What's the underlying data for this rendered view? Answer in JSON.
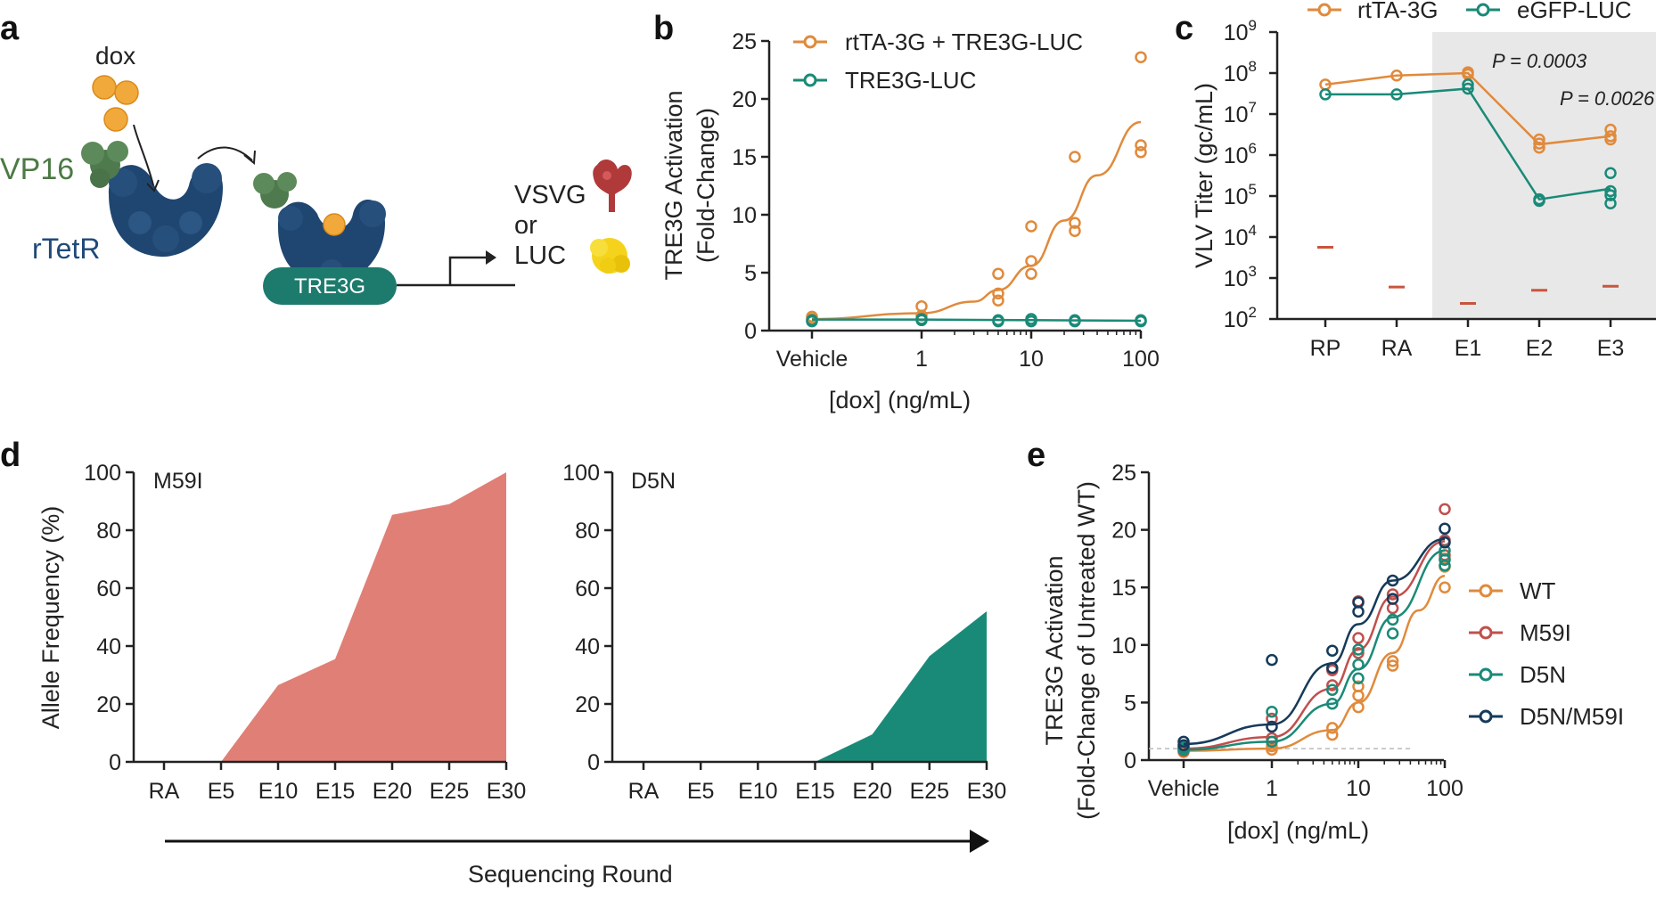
{
  "panel_labels": {
    "a": "a",
    "b": "b",
    "c": "c",
    "d": "d",
    "e": "e"
  },
  "schematic": {
    "dox": "dox",
    "vp16": "VP16",
    "rtetr": "rTetR",
    "tre3g": "TRE3G",
    "vsvg": "VSVG",
    "or": "or",
    "luc": "LUC"
  },
  "colors": {
    "orange": "#e08a3c",
    "teal": "#1a8a78",
    "navy": "#163a5a",
    "red": "#c0504d",
    "salmon": "#e07f76",
    "mark": "#c8553d",
    "shade": "#e8e8e8"
  },
  "chart_data": [
    {
      "id": "b",
      "type": "scatter",
      "xlabel": "[dox] (ng/mL)",
      "ylabel_line1": "TRE3G Activation",
      "ylabel_line2": "(Fold-Change)",
      "x_tick_labels": [
        "Vehicle",
        "1",
        "10",
        "100"
      ],
      "y_tick_labels": [
        "0",
        "5",
        "10",
        "15",
        "20",
        "25"
      ],
      "ylim": [
        0,
        25
      ],
      "series": [
        {
          "name": "rtTA-3G + TRE3G-LUC",
          "color": "orange",
          "points": [
            [
              0,
              1.2
            ],
            [
              0,
              1.0
            ],
            [
              1,
              2.1
            ],
            [
              1,
              1.3
            ],
            [
              5,
              4.9
            ],
            [
              5,
              3.2
            ],
            [
              5,
              2.6
            ],
            [
              10,
              9.0
            ],
            [
              10,
              6.0
            ],
            [
              10,
              4.9
            ],
            [
              25,
              15.0
            ],
            [
              25,
              9.3
            ],
            [
              25,
              8.6
            ],
            [
              100,
              23.6
            ],
            [
              100,
              16.0
            ],
            [
              100,
              15.4
            ]
          ],
          "curve": [
            [
              0,
              1.0
            ],
            [
              1,
              1.5
            ],
            [
              3,
              2.5
            ],
            [
              5,
              3.5
            ],
            [
              10,
              5.6
            ],
            [
              20,
              9.5
            ],
            [
              40,
              13.4
            ],
            [
              100,
              18.0
            ]
          ]
        },
        {
          "name": "TRE3G-LUC",
          "color": "teal",
          "points": [
            [
              0,
              0.9
            ],
            [
              0,
              0.8
            ],
            [
              1,
              1.0
            ],
            [
              1,
              0.9
            ],
            [
              5,
              0.9
            ],
            [
              5,
              0.8
            ],
            [
              10,
              1.0
            ],
            [
              10,
              0.8
            ],
            [
              25,
              0.9
            ],
            [
              25,
              0.8
            ],
            [
              100,
              0.9
            ],
            [
              100,
              0.8
            ]
          ],
          "curve": [
            [
              0,
              0.95
            ],
            [
              1,
              0.95
            ],
            [
              10,
              0.9
            ],
            [
              100,
              0.85
            ]
          ]
        }
      ]
    },
    {
      "id": "c",
      "type": "line",
      "ylabel": "VLV Titer (gc/mL)",
      "categories": [
        "RP",
        "RA",
        "E1",
        "E2",
        "E3"
      ],
      "y_tick_exponents": [
        "2",
        "3",
        "4",
        "5",
        "6",
        "7",
        "8",
        "9"
      ],
      "y_tick_base": "10",
      "ylim_log10": [
        2,
        9
      ],
      "series": [
        {
          "name": "rtTA-3G",
          "color": "orange",
          "means": [
            7.72,
            7.94,
            8.0,
            6.26,
            6.46
          ],
          "points": [
            [
              0,
              7.72
            ],
            [
              1,
              7.94
            ],
            [
              2,
              8.02
            ],
            [
              2,
              7.97
            ],
            [
              3,
              6.38
            ],
            [
              3,
              6.18
            ],
            [
              3,
              6.28
            ],
            [
              4,
              6.62
            ],
            [
              4,
              6.38
            ],
            [
              4,
              6.46
            ]
          ]
        },
        {
          "name": "eGFP-LUC",
          "color": "teal",
          "means": [
            7.48,
            7.48,
            7.62,
            4.92,
            5.18
          ],
          "points": [
            [
              0,
              7.48
            ],
            [
              1,
              7.48
            ],
            [
              2,
              7.72
            ],
            [
              2,
              7.62
            ],
            [
              3,
              4.92
            ],
            [
              3,
              4.88
            ],
            [
              4,
              5.56
            ],
            [
              4,
              5.02
            ],
            [
              4,
              4.82
            ],
            [
              4,
              5.12
            ]
          ]
        }
      ],
      "detection_limits": [
        3.75,
        2.78,
        2.38,
        2.7,
        2.8
      ],
      "shaded_categories": [
        "E1",
        "E2",
        "E3"
      ],
      "annotations": [
        "P = 0.0003",
        "P = 0.0026"
      ]
    },
    {
      "id": "d1",
      "type": "area",
      "title": "M59I",
      "ylabel": "Allele Frequency (%)",
      "categories": [
        "RA",
        "E5",
        "E10",
        "E15",
        "E20",
        "E25",
        "E30"
      ],
      "values": [
        0,
        0,
        26.5,
        35.5,
        85.3,
        89,
        100
      ],
      "y_tick_labels": [
        "0",
        "20",
        "40",
        "60",
        "80",
        "100"
      ],
      "ylim": [
        0,
        100
      ],
      "color": "salmon"
    },
    {
      "id": "d2",
      "type": "area",
      "title": "D5N",
      "categories": [
        "RA",
        "E5",
        "E10",
        "E15",
        "E20",
        "E25",
        "E30"
      ],
      "values": [
        0,
        0,
        0,
        0,
        9.5,
        36.5,
        52
      ],
      "y_tick_labels": [
        "0",
        "20",
        "40",
        "60",
        "80",
        "100"
      ],
      "ylim": [
        0,
        100
      ],
      "color": "teal",
      "xlabel": "Sequencing Round"
    },
    {
      "id": "e",
      "type": "scatter",
      "xlabel": "[dox] (ng/mL)",
      "ylabel_line1": "TRE3G Activation",
      "ylabel_line2": "(Fold-Change of Untreated WT)",
      "x_tick_labels": [
        "Vehicle",
        "1",
        "10",
        "100"
      ],
      "y_tick_labels": [
        "0",
        "5",
        "10",
        "15",
        "20",
        "25"
      ],
      "ylim": [
        0,
        25
      ],
      "baseline": 1,
      "series": [
        {
          "name": "WT",
          "color": "orange",
          "points": [
            [
              0,
              0.7
            ],
            [
              0,
              1.0
            ],
            [
              1,
              0.9
            ],
            [
              1,
              1.2
            ],
            [
              5,
              2.2
            ],
            [
              5,
              2.8
            ],
            [
              10,
              4.6
            ],
            [
              10,
              5.6
            ],
            [
              10,
              6.4
            ],
            [
              25,
              8.2
            ],
            [
              25,
              8.6
            ],
            [
              100,
              15.0
            ],
            [
              100,
              16.8
            ],
            [
              100,
              17.5
            ]
          ],
          "curve": [
            [
              0,
              0.8
            ],
            [
              1,
              1.0
            ],
            [
              5,
              2.6
            ],
            [
              10,
              5.0
            ],
            [
              25,
              9.3
            ],
            [
              50,
              13.0
            ],
            [
              100,
              16.0
            ]
          ]
        },
        {
          "name": "M59I",
          "color": "red",
          "points": [
            [
              0,
              0.8
            ],
            [
              0,
              1.1
            ],
            [
              1,
              1.9
            ],
            [
              1,
              3.6
            ],
            [
              5,
              6.5
            ],
            [
              5,
              7.8
            ],
            [
              10,
              9.3
            ],
            [
              10,
              10.6
            ],
            [
              10,
              13.8
            ],
            [
              25,
              13.2
            ],
            [
              25,
              14.4
            ],
            [
              100,
              17.8
            ],
            [
              100,
              19.1
            ],
            [
              100,
              21.8
            ]
          ],
          "curve": [
            [
              0,
              1.0
            ],
            [
              1,
              2.0
            ],
            [
              5,
              6.2
            ],
            [
              10,
              9.6
            ],
            [
              25,
              14.2
            ],
            [
              100,
              19.0
            ]
          ]
        },
        {
          "name": "D5N",
          "color": "teal",
          "points": [
            [
              0,
              0.9
            ],
            [
              0,
              1.1
            ],
            [
              1,
              4.2
            ],
            [
              1,
              1.6
            ],
            [
              5,
              4.9
            ],
            [
              5,
              6.1
            ],
            [
              10,
              7.1
            ],
            [
              10,
              8.3
            ],
            [
              10,
              9.6
            ],
            [
              25,
              11.0
            ],
            [
              25,
              12.2
            ],
            [
              100,
              16.9
            ],
            [
              100,
              18.2
            ],
            [
              100,
              17.4
            ]
          ],
          "curve": [
            [
              0,
              0.9
            ],
            [
              1,
              1.6
            ],
            [
              5,
              4.9
            ],
            [
              10,
              7.9
            ],
            [
              25,
              12.4
            ],
            [
              100,
              18.2
            ]
          ]
        },
        {
          "name": "D5N/M59I",
          "color": "navy",
          "points": [
            [
              0,
              1.3
            ],
            [
              0,
              1.6
            ],
            [
              1,
              8.7
            ],
            [
              1,
              2.9
            ],
            [
              5,
              9.5
            ],
            [
              5,
              8.0
            ],
            [
              10,
              12.9
            ],
            [
              10,
              13.7
            ],
            [
              25,
              15.6
            ],
            [
              25,
              14.0
            ],
            [
              100,
              20.1
            ],
            [
              100,
              18.9
            ]
          ],
          "curve": [
            [
              0,
              1.4
            ],
            [
              1,
              3.1
            ],
            [
              5,
              8.4
            ],
            [
              10,
              11.8
            ],
            [
              25,
              15.6
            ],
            [
              100,
              19.2
            ]
          ]
        }
      ]
    }
  ]
}
